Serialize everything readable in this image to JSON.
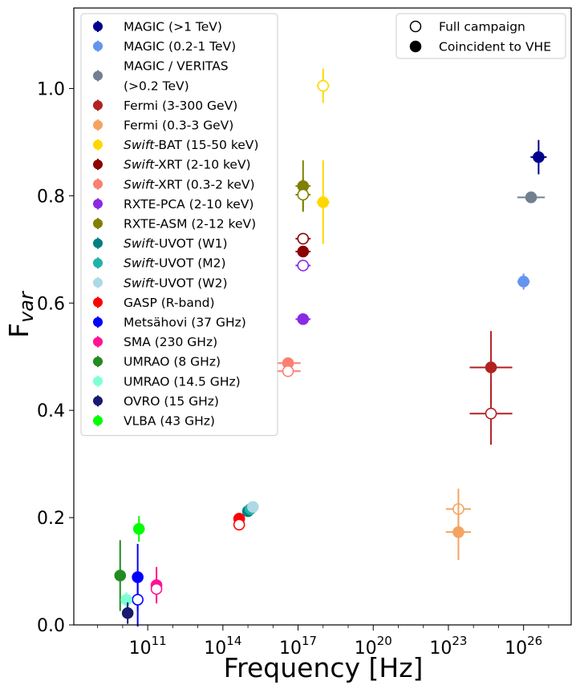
{
  "chart_data": {
    "type": "scatter",
    "xlabel": "Frequency [Hz]",
    "ylabel": "F",
    "ylabel_sub": "var",
    "x_scale": "log",
    "xlim_log10": [
      8.05,
      27.9
    ],
    "ylim": [
      0.0,
      1.15
    ],
    "x_ticks": [
      {
        "mantissa": "10",
        "exp": "11",
        "log10": 11
      },
      {
        "mantissa": "10",
        "exp": "14",
        "log10": 14
      },
      {
        "mantissa": "10",
        "exp": "17",
        "log10": 17
      },
      {
        "mantissa": "10",
        "exp": "20",
        "log10": 20
      },
      {
        "mantissa": "10",
        "exp": "23",
        "log10": 23
      },
      {
        "mantissa": "10",
        "exp": "26",
        "log10": 26
      }
    ],
    "y_ticks": [
      {
        "label": "0.0",
        "value": 0.0
      },
      {
        "label": "0.2",
        "value": 0.2
      },
      {
        "label": "0.4",
        "value": 0.4
      },
      {
        "label": "0.6",
        "value": 0.6
      },
      {
        "label": "0.8",
        "value": 0.8
      },
      {
        "label": "1.0",
        "value": 1.0
      }
    ],
    "legend_position": "top-left",
    "series": [
      {
        "name": "MAGIC (>1 TeV)",
        "color": "#00008B",
        "points": [
          {
            "log10x": 26.6,
            "y": 0.872,
            "yerr": 0.032,
            "xerr": 0.32,
            "filled": true
          }
        ]
      },
      {
        "name": "MAGIC (0.2-1 TeV)",
        "color": "#6495ED",
        "points": [
          {
            "log10x": 26.0,
            "y": 0.64,
            "yerr": 0.015,
            "xerr": 0.25,
            "filled": true
          }
        ]
      },
      {
        "name": "MAGIC / VERITAS\n(>0.2 TeV)",
        "color": "#708090",
        "points": [
          {
            "log10x": 26.3,
            "y": 0.797,
            "yerr": 0.01,
            "xerr": 0.55,
            "filled": true
          }
        ]
      },
      {
        "name": "Fermi (3-300 GeV)",
        "color": "#B22222",
        "points": [
          {
            "log10x": 24.7,
            "y": 0.48,
            "yerr": 0.068,
            "xerr": 0.85,
            "filled": true
          },
          {
            "log10x": 24.7,
            "y": 0.394,
            "yerr": 0.058,
            "xerr": 0.85,
            "filled": false
          }
        ]
      },
      {
        "name": "Fermi (0.3-3 GeV)",
        "color": "#F4A460",
        "points": [
          {
            "log10x": 23.4,
            "y": 0.216,
            "yerr": 0.038,
            "xerr": 0.5,
            "filled": false
          },
          {
            "log10x": 23.4,
            "y": 0.173,
            "yerr": 0.052,
            "xerr": 0.5,
            "filled": true
          }
        ]
      },
      {
        "name": "Swift-BAT (15-50 keV)",
        "color": "#FFD700",
        "points": [
          {
            "log10x": 18.0,
            "y": 1.005,
            "yerr": 0.032,
            "xerr": 0.25,
            "filled": false
          },
          {
            "log10x": 18.0,
            "y": 0.788,
            "yerr": 0.078,
            "xerr": 0.25,
            "filled": true
          }
        ]
      },
      {
        "name": "Swift-XRT (2-10 keV)",
        "color": "#8B0000",
        "points": [
          {
            "log10x": 17.2,
            "y": 0.72,
            "yerr": 0.008,
            "xerr": 0.3,
            "filled": false
          },
          {
            "log10x": 17.2,
            "y": 0.696,
            "yerr": 0.008,
            "xerr": 0.3,
            "filled": true
          }
        ]
      },
      {
        "name": "Swift-XRT (0.3-2 keV)",
        "color": "#FA8072",
        "points": [
          {
            "log10x": 16.6,
            "y": 0.488,
            "yerr": 0.008,
            "xerr": 0.5,
            "filled": true
          },
          {
            "log10x": 16.6,
            "y": 0.473,
            "yerr": 0.008,
            "xerr": 0.5,
            "filled": false
          }
        ]
      },
      {
        "name": "RXTE-PCA (2-10 keV)",
        "color": "#8A2BE2",
        "points": [
          {
            "log10x": 17.2,
            "y": 0.67,
            "yerr": 0.006,
            "xerr": 0.3,
            "filled": false
          },
          {
            "log10x": 17.2,
            "y": 0.57,
            "yerr": 0.006,
            "xerr": 0.3,
            "filled": true
          }
        ]
      },
      {
        "name": "RXTE-ASM (2-12 keV)",
        "color": "#808000",
        "points": [
          {
            "log10x": 17.2,
            "y": 0.818,
            "yerr": 0.048,
            "xerr": 0.3,
            "filled": true
          },
          {
            "log10x": 17.2,
            "y": 0.802,
            "yerr": 0.03,
            "xerr": 0.3,
            "filled": false
          }
        ]
      },
      {
        "name": "Swift-UVOT (W1)",
        "color": "#008080",
        "points": [
          {
            "log10x": 15.0,
            "y": 0.212,
            "yerr": 0.004,
            "xerr": 0.05,
            "filled": true
          }
        ]
      },
      {
        "name": "Swift-UVOT (M2)",
        "color": "#20B2AA",
        "points": [
          {
            "log10x": 15.1,
            "y": 0.216,
            "yerr": 0.004,
            "xerr": 0.05,
            "filled": true
          }
        ]
      },
      {
        "name": "Swift-UVOT (W2)",
        "color": "#ADD8E6",
        "points": [
          {
            "log10x": 15.2,
            "y": 0.22,
            "yerr": 0.004,
            "xerr": 0.05,
            "filled": true
          }
        ]
      },
      {
        "name": "GASP (R-band)",
        "color": "#FF0000",
        "points": [
          {
            "log10x": 14.65,
            "y": 0.198,
            "yerr": 0.004,
            "xerr": 0.05,
            "filled": true
          },
          {
            "log10x": 14.65,
            "y": 0.187,
            "yerr": 0.004,
            "xerr": 0.05,
            "filled": false
          }
        ]
      },
      {
        "name": "Metsähovi (37 GHz)",
        "color": "#0000FF",
        "points": [
          {
            "log10x": 10.6,
            "y": 0.089,
            "yerr": 0.062,
            "xerr": 0.05,
            "filled": true
          },
          {
            "log10x": 10.6,
            "y": 0.047,
            "yerr": 0.05,
            "xerr": 0.05,
            "filled": false
          }
        ]
      },
      {
        "name": "SMA (230 GHz)",
        "color": "#FF1493",
        "points": [
          {
            "log10x": 11.35,
            "y": 0.074,
            "yerr": 0.034,
            "xerr": 0.05,
            "filled": true
          },
          {
            "log10x": 11.35,
            "y": 0.067,
            "yerr": 0.02,
            "xerr": 0.05,
            "filled": false
          }
        ]
      },
      {
        "name": "UMRAO (8 GHz)",
        "color": "#228B22",
        "points": [
          {
            "log10x": 9.9,
            "y": 0.092,
            "yerr": 0.066,
            "xerr": 0.05,
            "filled": true
          }
        ]
      },
      {
        "name": "UMRAO (14.5 GHz)",
        "color": "#7FFFD4",
        "points": [
          {
            "log10x": 10.15,
            "y": 0.047,
            "yerr": 0.014,
            "xerr": 0.05,
            "filled": true
          }
        ]
      },
      {
        "name": "OVRO (15 GHz)",
        "color": "#191970",
        "points": [
          {
            "log10x": 10.2,
            "y": 0.022,
            "yerr": 0.02,
            "xerr": 0.05,
            "filled": true
          }
        ]
      },
      {
        "name": "VLBA (43 GHz)",
        "color": "#00FF00",
        "points": [
          {
            "log10x": 10.65,
            "y": 0.179,
            "yerr": 0.024,
            "xerr": 0.05,
            "filled": true
          }
        ]
      }
    ],
    "marker_legend": [
      {
        "label": "Full campaign",
        "filled": false
      },
      {
        "label": "Coincident to VHE",
        "filled": true
      }
    ]
  }
}
